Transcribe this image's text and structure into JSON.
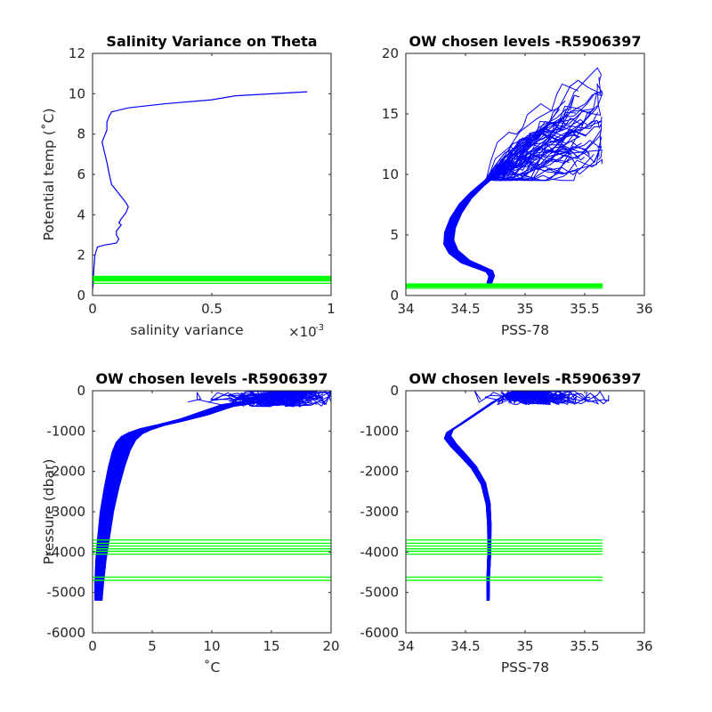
{
  "chart_data": [
    {
      "type": "line",
      "title": "Salinity Variance on Theta",
      "xlabel": "salinity variance",
      "x_exponent_label": "×10",
      "x_exponent_power": "-3",
      "ylabel": "Potential temp (˚C)",
      "xlim": [
        0,
        1
      ],
      "ylim": [
        0,
        12
      ],
      "xticks": [
        0,
        0.5,
        1
      ],
      "xtick_labels": [
        "0",
        "0.5",
        "1"
      ],
      "yticks": [
        0,
        2,
        4,
        6,
        8,
        10,
        12
      ],
      "ytick_labels": [
        "0",
        "2",
        "4",
        "6",
        "8",
        "10",
        "12"
      ],
      "colors": {
        "profile": "#0000ff",
        "chosen_levels": "#00ff00"
      },
      "series": [
        {
          "x": [
            0.0,
            0.003,
            0.005,
            0.01,
            0.02,
            0.05,
            0.1,
            0.11,
            0.1,
            0.1,
            0.12,
            0.11,
            0.12,
            0.14,
            0.15,
            0.14,
            0.12,
            0.1,
            0.08,
            0.07,
            0.06,
            0.05,
            0.04,
            0.05,
            0.06,
            0.06,
            0.07,
            0.08,
            0.15,
            0.3,
            0.5,
            0.6,
            0.9
          ],
          "y": [
            0.3,
            0.6,
            1.2,
            2.0,
            2.4,
            2.5,
            2.6,
            2.8,
            3.0,
            3.2,
            3.5,
            3.6,
            3.8,
            4.1,
            4.4,
            4.6,
            4.9,
            5.2,
            5.5,
            6.0,
            6.6,
            7.1,
            7.6,
            7.9,
            8.2,
            8.6,
            8.9,
            9.1,
            9.3,
            9.5,
            9.7,
            9.9,
            10.1
          ]
        }
      ],
      "hlines": [
        0.6,
        0.72,
        0.78,
        0.82,
        0.86,
        0.9,
        0.95
      ],
      "hline_range": [
        0,
        1
      ]
    },
    {
      "type": "line",
      "title": "OW chosen levels -R5906397",
      "xlabel": "PSS-78",
      "ylabel": "",
      "xlim": [
        34,
        36
      ],
      "ylim": [
        0,
        20
      ],
      "xticks": [
        34,
        34.5,
        35,
        35.5,
        36
      ],
      "xtick_labels": [
        "34",
        "34.5",
        "35",
        "35.5",
        "36"
      ],
      "yticks": [
        0,
        5,
        10,
        15,
        20
      ],
      "ytick_labels": [
        "0",
        "5",
        "10",
        "15",
        "20"
      ],
      "profiles": 60,
      "base_profile": {
        "x": [
          34.7,
          34.72,
          34.7,
          34.6,
          34.5,
          34.4,
          34.36,
          34.37,
          34.42,
          34.5,
          34.6,
          34.72
        ],
        "y": [
          1.0,
          1.6,
          2.0,
          2.4,
          2.8,
          3.6,
          4.4,
          5.4,
          6.6,
          7.8,
          8.8,
          9.8
        ]
      },
      "hlines": [
        0.6,
        0.72,
        0.78,
        0.82,
        0.86,
        0.9,
        0.95
      ],
      "hline_range": [
        34,
        35.65
      ]
    },
    {
      "type": "line",
      "title": "OW chosen levels -R5906397",
      "xlabel": "˚C",
      "ylabel": "Pressure (dbar)",
      "xlim": [
        0,
        20
      ],
      "ylim": [
        -6000,
        0
      ],
      "xticks": [
        0,
        5,
        10,
        15,
        20
      ],
      "xtick_labels": [
        "0",
        "5",
        "10",
        "15",
        "20"
      ],
      "yticks": [
        -6000,
        -5000,
        -4000,
        -3000,
        -2000,
        -1000,
        0
      ],
      "ytick_labels": [
        "-6000",
        "-5000",
        "-4000",
        "-3000",
        "-2000",
        "-1000",
        "0"
      ],
      "profiles": 60,
      "base_profile": {
        "x": [
          0.5,
          0.55,
          0.7,
          0.9,
          1.2,
          1.6,
          2.0,
          2.4,
          2.8,
          3.3,
          4.0,
          5.0,
          6.5,
          8.5,
          10.0,
          12.0,
          14.0,
          16.0,
          18.0
        ],
        "y": [
          -5200,
          -4800,
          -4200,
          -3700,
          -3000,
          -2400,
          -1900,
          -1500,
          -1250,
          -1100,
          -1000,
          -900,
          -800,
          -650,
          -500,
          -300,
          -200,
          -100,
          -30
        ]
      },
      "hlines": [
        -3700,
        -3780,
        -3850,
        -3920,
        -3980,
        -4050,
        -4620,
        -4700
      ],
      "hline_range": [
        0,
        20
      ]
    },
    {
      "type": "line",
      "title": "OW chosen levels -R5906397",
      "xlabel": "PSS-78",
      "ylabel": "",
      "xlim": [
        34,
        36
      ],
      "ylim": [
        -6000,
        0
      ],
      "xticks": [
        34,
        34.5,
        35,
        35.5,
        36
      ],
      "xtick_labels": [
        "34",
        "34.5",
        "35",
        "35.5",
        "36"
      ],
      "yticks": [
        -6000,
        -5000,
        -4000,
        -3000,
        -2000,
        -1000,
        0
      ],
      "ytick_labels": [
        "-6000",
        "-5000",
        "-4000",
        "-3000",
        "-2000",
        "-1000",
        "0"
      ],
      "profiles": 60,
      "base_profile": {
        "x": [
          34.69,
          34.69,
          34.7,
          34.7,
          34.69,
          34.65,
          34.57,
          34.48,
          34.4,
          34.35,
          34.37,
          34.45,
          34.55,
          34.65,
          34.75,
          34.85
        ],
        "y": [
          -5200,
          -4700,
          -4000,
          -3300,
          -2800,
          -2300,
          -1900,
          -1600,
          -1350,
          -1150,
          -1000,
          -850,
          -650,
          -450,
          -250,
          -80
        ]
      },
      "hlines": [
        -3700,
        -3780,
        -3850,
        -3920,
        -3980,
        -4050,
        -4620,
        -4700
      ],
      "hline_range": [
        34,
        35.65
      ]
    }
  ]
}
